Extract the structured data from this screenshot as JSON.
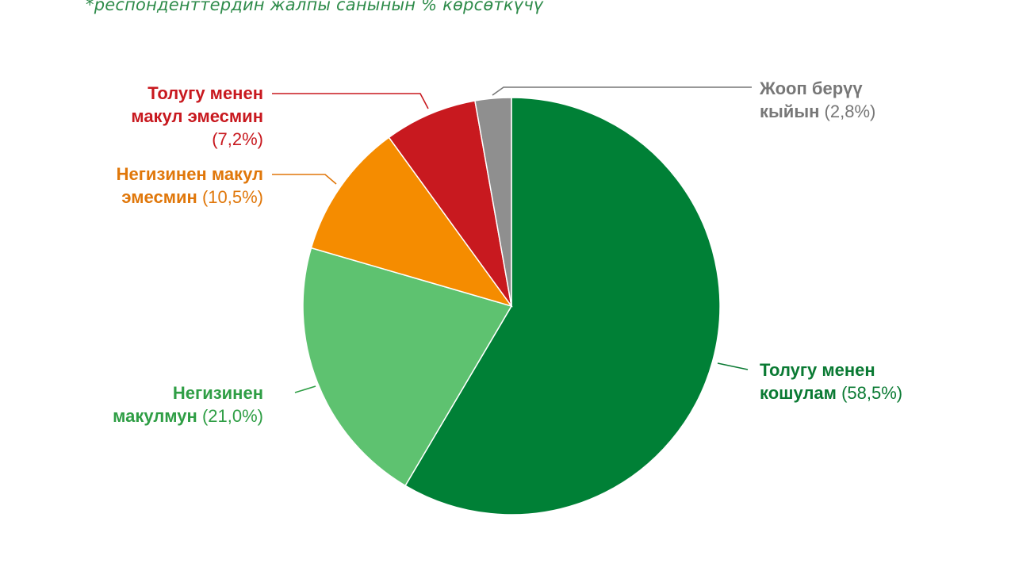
{
  "note": "*респонденттердин жалпы санынын % көрсөткүчү",
  "chart_data": {
    "type": "pie",
    "slices": [
      {
        "line1": "Толугу менен",
        "line2": "кошулам",
        "pct": "(58,5%)",
        "value": 58.5,
        "color": "#008036",
        "text_color": "#0a7a33",
        "icon": "slice-fully-agree"
      },
      {
        "line1": "Негизинен",
        "line2": "макулмун",
        "pct": "(21,0%)",
        "value": 21.0,
        "color": "#5ec270",
        "text_color": "#2f9e45",
        "icon": "slice-mostly-agree"
      },
      {
        "line1": "Негизинен макул",
        "line2": "эмесмин",
        "pct": "(10,5%)",
        "value": 10.5,
        "color": "#f58c00",
        "text_color": "#e0770a",
        "icon": "slice-mostly-disagree"
      },
      {
        "line1": "Толугу менен",
        "line2": "макул эмесмин",
        "pct": "(7,2%)",
        "value": 7.2,
        "color": "#c8191f",
        "text_color": "#c8191f",
        "icon": "slice-fully-disagree"
      },
      {
        "line1": "Жооп берүү",
        "line2": "кыйын",
        "pct": "(2,8%)",
        "value": 2.8,
        "color": "#8f8f8f",
        "text_color": "#777777",
        "icon": "slice-hard-to-answer"
      }
    ]
  }
}
